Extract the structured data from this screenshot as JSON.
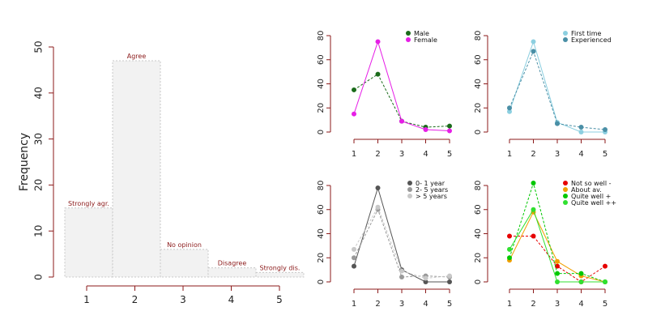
{
  "chart_data": [
    {
      "type": "bar",
      "categories": [
        "1",
        "2",
        "3",
        "4",
        "5"
      ],
      "values": [
        15,
        47,
        6,
        2,
        1
      ],
      "bar_labels": [
        "Strongly agr.",
        "Agree",
        "No opinion",
        "Disagree",
        "Strongly dis."
      ],
      "ylabel": "Frequency",
      "ylim": [
        0,
        50
      ],
      "yticks": [
        0,
        10,
        20,
        30,
        40,
        50
      ],
      "colors": {
        "fill": "#f2f2f2",
        "edge": "#c8c8c8",
        "label": "#8b1a1a",
        "axis": "#8b1a1a"
      }
    },
    {
      "type": "line",
      "x": [
        1,
        2,
        3,
        4,
        5
      ],
      "ylim": [
        0,
        80
      ],
      "yticks": [
        0,
        20,
        40,
        60,
        80
      ],
      "legend_position": "top-right",
      "series": [
        {
          "name": "Male",
          "values": [
            35,
            48,
            9,
            4,
            5
          ],
          "color": "#1a6b1a",
          "dash": true
        },
        {
          "name": "Female",
          "values": [
            15,
            75,
            9,
            2,
            1
          ],
          "color": "#e61ee6",
          "dash": false
        }
      ]
    },
    {
      "type": "line",
      "x": [
        1,
        2,
        3,
        4,
        5
      ],
      "ylim": [
        0,
        80
      ],
      "yticks": [
        0,
        20,
        40,
        60,
        80
      ],
      "legend_position": "top-right",
      "series": [
        {
          "name": "First time",
          "values": [
            17,
            75,
            8,
            0,
            0
          ],
          "color": "#8ccfe0",
          "dash": false
        },
        {
          "name": "Experienced",
          "values": [
            20,
            67,
            7,
            4,
            2
          ],
          "color": "#4a8fa6",
          "dash": true
        }
      ]
    },
    {
      "type": "line",
      "x": [
        1,
        2,
        3,
        4,
        5
      ],
      "ylim": [
        0,
        80
      ],
      "yticks": [
        0,
        20,
        40,
        60,
        80
      ],
      "legend_position": "top-right",
      "series": [
        {
          "name": "0- 1 year",
          "values": [
            13,
            78,
            10,
            0,
            0
          ],
          "color": "#555555",
          "dash": false
        },
        {
          "name": "2- 5 years",
          "values": [
            20,
            60,
            4,
            5,
            4
          ],
          "color": "#999999",
          "dash": true
        },
        {
          "name": "> 5 years",
          "values": [
            27,
            62,
            9,
            3,
            5
          ],
          "color": "#c8c8c8",
          "dash": true
        }
      ]
    },
    {
      "type": "line",
      "x": [
        1,
        2,
        3,
        4,
        5
      ],
      "ylim": [
        0,
        80
      ],
      "yticks": [
        0,
        20,
        40,
        60,
        80
      ],
      "legend_position": "top-right",
      "series": [
        {
          "name": "Not so well -",
          "values": [
            38,
            38,
            13,
            0,
            13
          ],
          "color": "#e60000",
          "dash": true
        },
        {
          "name": "About av.",
          "values": [
            18,
            58,
            17,
            5,
            0
          ],
          "color": "#f0a000",
          "dash": false
        },
        {
          "name": "Quite well +",
          "values": [
            20,
            82,
            7,
            7,
            0
          ],
          "color": "#00c800",
          "dash": true
        },
        {
          "name": "Quite well ++",
          "values": [
            27,
            60,
            0,
            0,
            0
          ],
          "color": "#30e030",
          "dash": false
        }
      ]
    }
  ]
}
